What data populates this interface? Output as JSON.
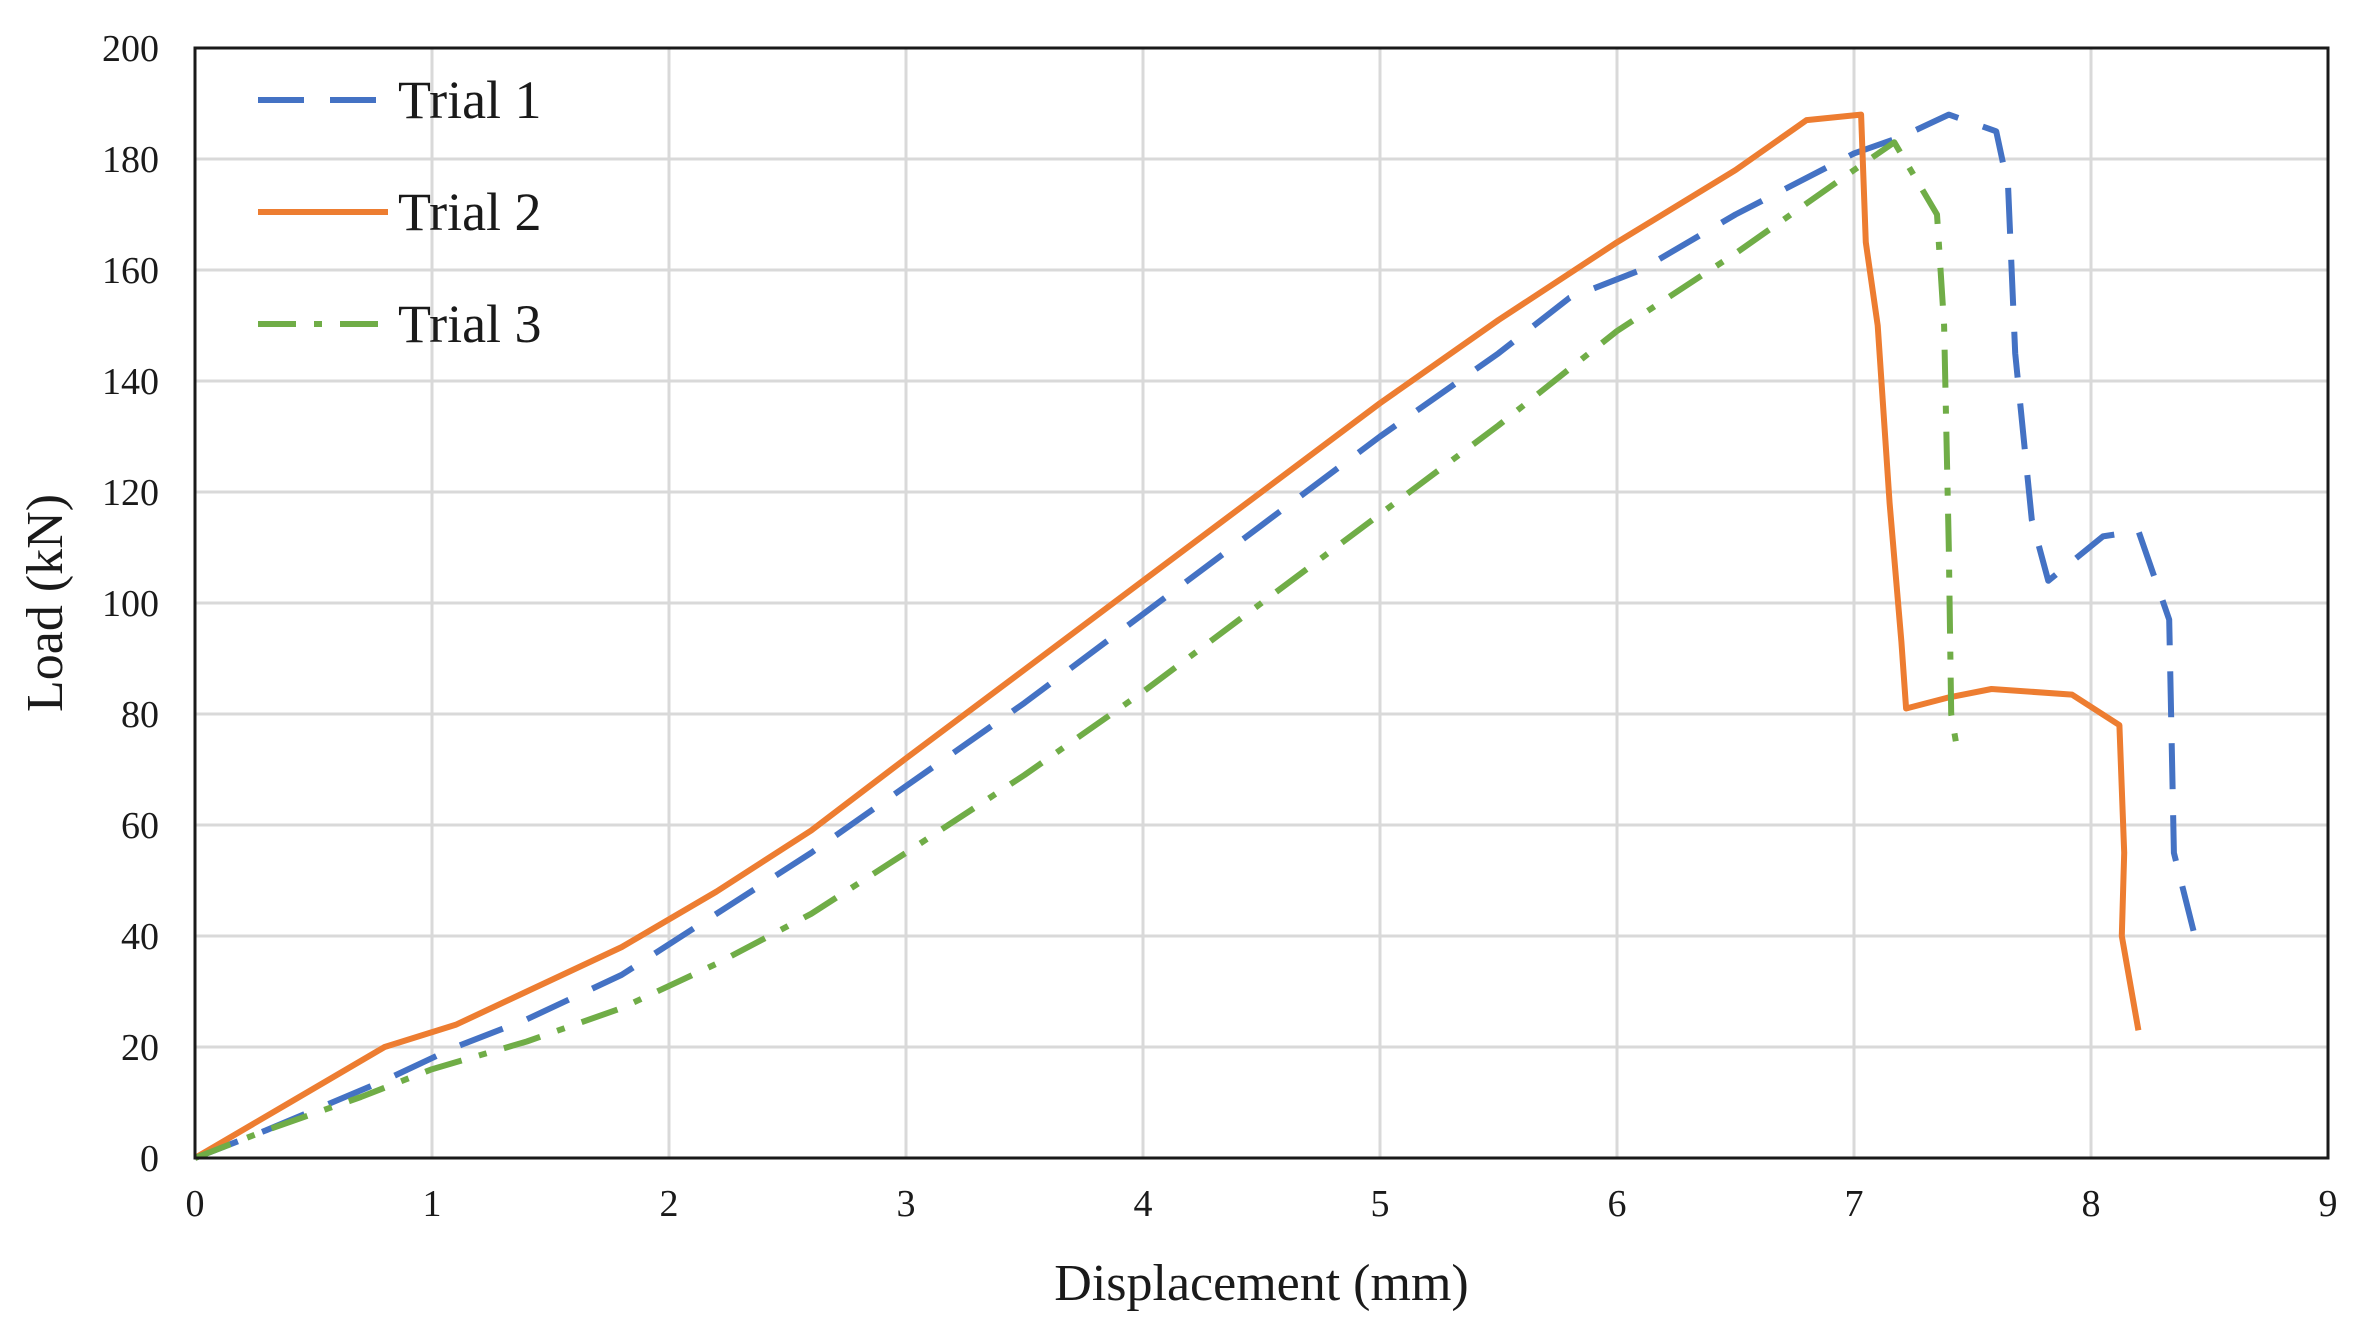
{
  "chart_data": {
    "type": "line",
    "xlabel": "Displacement (mm)",
    "ylabel": "Load (kN)",
    "xlim": [
      0,
      9
    ],
    "ylim": [
      0,
      200
    ],
    "xticks": [
      "0",
      "1",
      "2",
      "3",
      "4",
      "5",
      "6",
      "7",
      "8",
      "9"
    ],
    "yticks": [
      "0",
      "20",
      "40",
      "60",
      "80",
      "100",
      "120",
      "140",
      "160",
      "180",
      "200"
    ],
    "grid": true,
    "legend_position": "top-left",
    "series": [
      {
        "name": "Trial 1",
        "color": "#4472C4",
        "dash": "dashed",
        "points": [
          [
            0,
            0
          ],
          [
            0.3,
            5
          ],
          [
            0.8,
            14
          ],
          [
            1.1,
            20
          ],
          [
            1.4,
            25
          ],
          [
            1.8,
            33
          ],
          [
            2.2,
            44
          ],
          [
            2.6,
            55
          ],
          [
            3.0,
            67
          ],
          [
            3.5,
            82
          ],
          [
            4.0,
            98
          ],
          [
            4.5,
            114
          ],
          [
            5.0,
            130
          ],
          [
            5.5,
            145
          ],
          [
            5.8,
            155
          ],
          [
            6.1,
            160
          ],
          [
            6.5,
            170
          ],
          [
            7.0,
            181
          ],
          [
            7.2,
            184
          ],
          [
            7.4,
            188
          ],
          [
            7.6,
            185
          ],
          [
            7.65,
            175
          ],
          [
            7.68,
            145
          ],
          [
            7.75,
            115
          ],
          [
            7.82,
            104
          ],
          [
            8.05,
            112
          ],
          [
            8.2,
            113
          ],
          [
            8.33,
            97
          ],
          [
            8.35,
            55
          ],
          [
            8.45,
            38
          ]
        ]
      },
      {
        "name": "Trial 2",
        "color": "#ED7D31",
        "dash": "solid",
        "points": [
          [
            0,
            0
          ],
          [
            0.4,
            10
          ],
          [
            0.8,
            20
          ],
          [
            1.1,
            24
          ],
          [
            1.4,
            30
          ],
          [
            1.8,
            38
          ],
          [
            2.2,
            48
          ],
          [
            2.6,
            59
          ],
          [
            3.0,
            72
          ],
          [
            3.5,
            88
          ],
          [
            4.0,
            104
          ],
          [
            4.5,
            120
          ],
          [
            5.0,
            136
          ],
          [
            5.5,
            151
          ],
          [
            6.0,
            165
          ],
          [
            6.5,
            178
          ],
          [
            6.8,
            187
          ],
          [
            7.03,
            188
          ],
          [
            7.05,
            165
          ],
          [
            7.1,
            150
          ],
          [
            7.15,
            118
          ],
          [
            7.2,
            93
          ],
          [
            7.22,
            81
          ],
          [
            7.4,
            83
          ],
          [
            7.58,
            84.5
          ],
          [
            7.92,
            83.5
          ],
          [
            8.12,
            78
          ],
          [
            8.14,
            55
          ],
          [
            8.13,
            40
          ],
          [
            8.2,
            23
          ]
        ]
      },
      {
        "name": "Trial 3",
        "color": "#70AD47",
        "dash": "dashdot",
        "points": [
          [
            0,
            0
          ],
          [
            0.3,
            5
          ],
          [
            0.7,
            11
          ],
          [
            1.0,
            16
          ],
          [
            1.4,
            21
          ],
          [
            1.8,
            27
          ],
          [
            2.2,
            35
          ],
          [
            2.6,
            44
          ],
          [
            3.0,
            55
          ],
          [
            3.5,
            69
          ],
          [
            4.0,
            84
          ],
          [
            4.5,
            100
          ],
          [
            5.0,
            116
          ],
          [
            5.5,
            132
          ],
          [
            6.0,
            149
          ],
          [
            6.5,
            163
          ],
          [
            7.0,
            178
          ],
          [
            7.17,
            183
          ],
          [
            7.35,
            170
          ],
          [
            7.38,
            150
          ],
          [
            7.4,
            110
          ],
          [
            7.41,
            80
          ],
          [
            7.43,
            75
          ]
        ]
      }
    ]
  }
}
